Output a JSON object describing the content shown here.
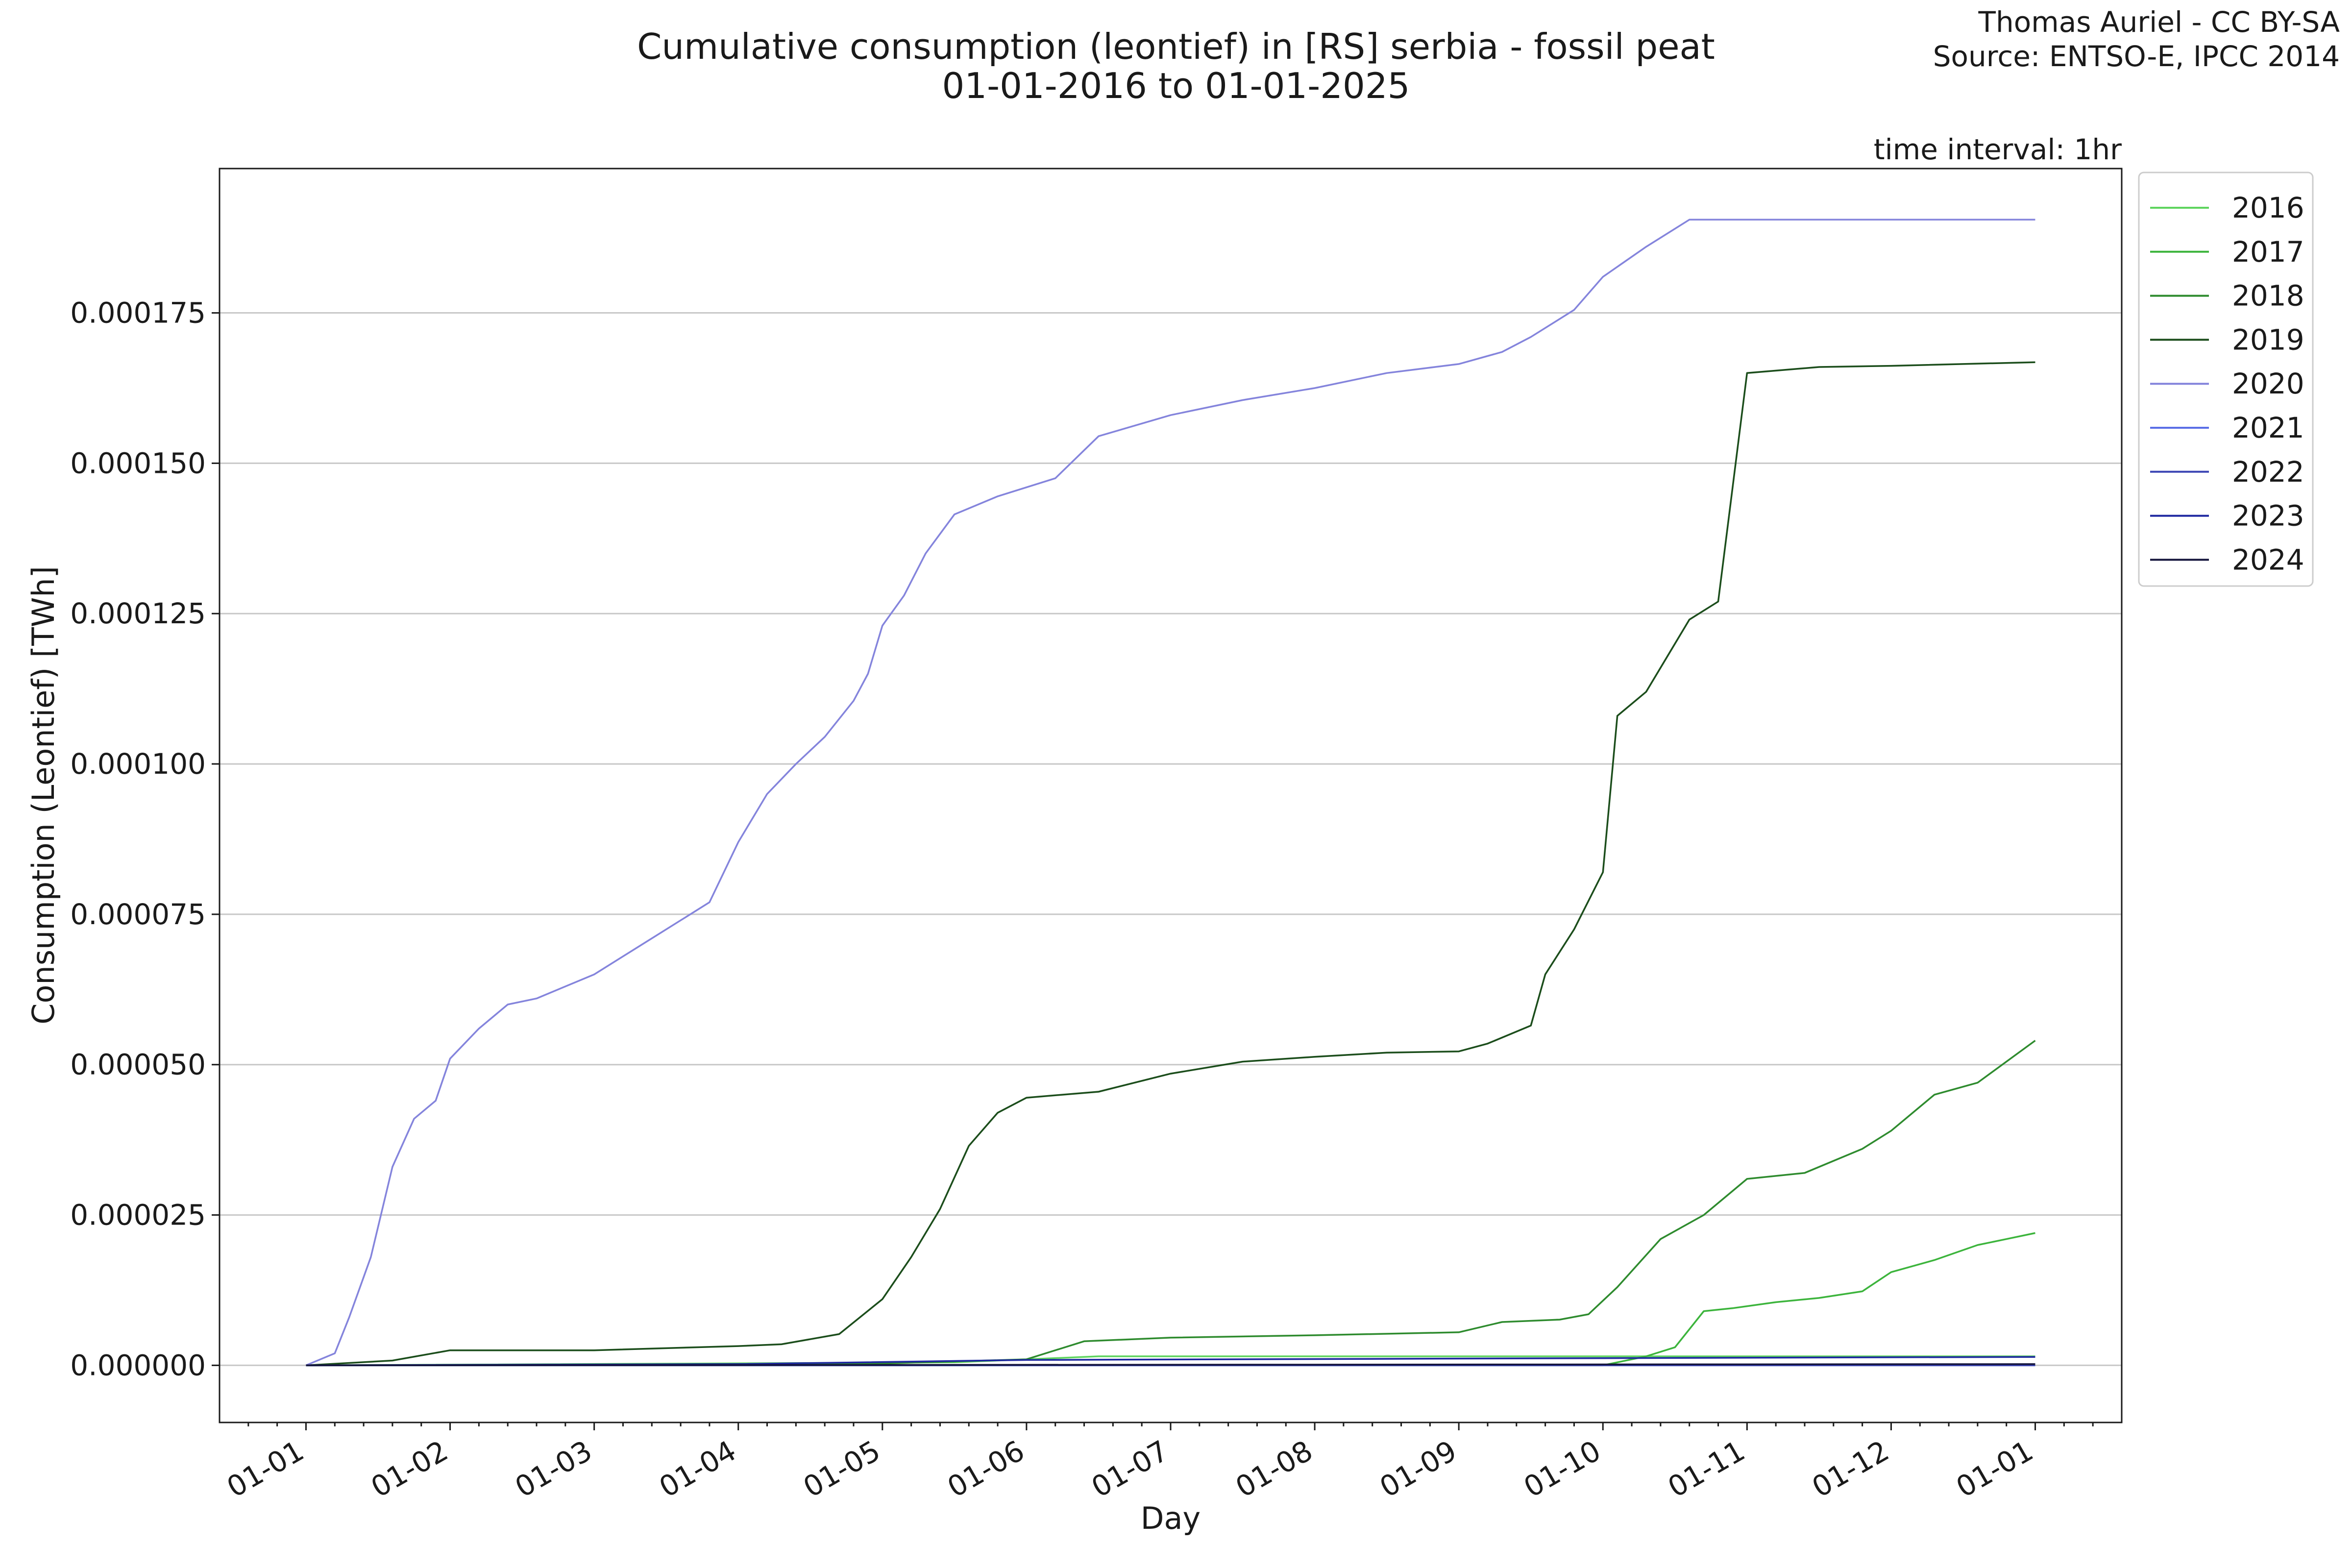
{
  "chart_data": {
    "type": "line",
    "title": "Cumulative consumption (leontief) in [RS] serbia - fossil peat",
    "subtitle": "01-01-2016 to 01-01-2025",
    "credit_line1": "Thomas Auriel - CC BY-SA",
    "credit_line2": "Source: ENTSO-E, IPCC 2014",
    "interval_note": "time interval: 1hr",
    "xlabel": "Day",
    "ylabel": "Consumption (Leontief) [TWh]",
    "x_tick_labels": [
      "01-01",
      "01-02",
      "01-03",
      "01-04",
      "01-05",
      "01-06",
      "01-07",
      "01-08",
      "01-09",
      "01-10",
      "01-11",
      "01-12",
      "01-01"
    ],
    "y_tick_labels": [
      "0.000000",
      "0.000025",
      "0.000050",
      "0.000075",
      "0.000100",
      "0.000125",
      "0.000150",
      "0.000175"
    ],
    "y_ticks": [
      0,
      2.5e-05,
      5e-05,
      7.5e-05,
      0.0001,
      0.000125,
      0.00015,
      0.000175
    ],
    "xlim": [
      -0.6,
      12.6
    ],
    "ylim": [
      -9.5e-06,
      0.000199
    ],
    "grid": "horizontal",
    "legend_position": "outside-top-right",
    "series": [
      {
        "name": "2016",
        "color": "#5ed45e",
        "x": [
          0,
          4.5,
          5.5,
          12
        ],
        "y": [
          0,
          5e-07,
          1.5e-06,
          1.5e-06
        ]
      },
      {
        "name": "2017",
        "color": "#3cb43c",
        "x": [
          0,
          9.0,
          9.3,
          9.5,
          9.7,
          9.9,
          10.2,
          10.5,
          10.8,
          11.0,
          11.3,
          11.6,
          11.8,
          12.0
        ],
        "y": [
          0,
          0,
          1.5e-06,
          3e-06,
          9e-06,
          9.5e-06,
          1.05e-05,
          1.12e-05,
          1.23e-05,
          1.55e-05,
          1.75e-05,
          2e-05,
          2.1e-05,
          2.2e-05
        ]
      },
      {
        "name": "2018",
        "color": "#2e8b2e",
        "x": [
          0,
          4.0,
          5.0,
          5.4,
          6.0,
          7.0,
          8.0,
          8.3,
          8.7,
          8.9,
          9.1,
          9.4,
          9.7,
          10.0,
          10.4,
          10.8,
          11.0,
          11.3,
          11.6,
          12.0
        ],
        "y": [
          0,
          3e-07,
          1e-06,
          4e-06,
          4.6e-06,
          5e-06,
          5.5e-06,
          7.2e-06,
          7.6e-06,
          8.5e-06,
          1.3e-05,
          2.1e-05,
          2.5e-05,
          3.1e-05,
          3.2e-05,
          3.6e-05,
          3.9e-05,
          4.5e-05,
          4.7e-05,
          5.4e-05
        ]
      },
      {
        "name": "2019",
        "color": "#1b4d1b",
        "x": [
          0,
          0.6,
          1.0,
          2.0,
          3.0,
          3.3,
          3.7,
          4.0,
          4.2,
          4.4,
          4.6,
          4.8,
          5.0,
          5.5,
          6.0,
          6.5,
          7.0,
          7.5,
          8.0,
          8.2,
          8.5,
          8.6,
          8.8,
          9.0,
          9.1,
          9.15,
          9.3,
          9.6,
          9.8,
          10.0,
          10.5,
          11.0,
          12.0
        ],
        "y": [
          0,
          8e-07,
          2.5e-06,
          2.5e-06,
          3.2e-06,
          3.5e-06,
          5.2e-06,
          1.1e-05,
          1.8e-05,
          2.6e-05,
          3.65e-05,
          4.2e-05,
          4.45e-05,
          4.55e-05,
          4.85e-05,
          5.05e-05,
          5.13e-05,
          5.2e-05,
          5.22e-05,
          5.35e-05,
          5.65e-05,
          6.5e-05,
          7.25e-05,
          8.2e-05,
          0.000108,
          0.000109,
          0.000112,
          0.000124,
          0.000127,
          0.000165,
          0.000166,
          0.0001662,
          0.0001668
        ]
      },
      {
        "name": "2020",
        "color": "#8484dc",
        "x": [
          0,
          0.2,
          0.3,
          0.45,
          0.6,
          0.75,
          0.9,
          1.0,
          1.2,
          1.4,
          1.6,
          2.0,
          2.3,
          2.6,
          2.8,
          3.0,
          3.2,
          3.4,
          3.6,
          3.8,
          3.9,
          4.0,
          4.15,
          4.3,
          4.5,
          4.8,
          5.2,
          5.5,
          6.0,
          6.5,
          7.0,
          7.5,
          8.0,
          8.3,
          8.5,
          8.8,
          9.0,
          9.3,
          9.6,
          12.0
        ],
        "y": [
          0,
          2e-06,
          8e-06,
          1.8e-05,
          3.3e-05,
          4.1e-05,
          4.4e-05,
          5.1e-05,
          5.6e-05,
          6e-05,
          6.1e-05,
          6.5e-05,
          6.95e-05,
          7.4e-05,
          7.7e-05,
          8.7e-05,
          9.5e-05,
          0.0001,
          0.0001045,
          0.0001105,
          0.000115,
          0.000123,
          0.000128,
          0.000135,
          0.0001415,
          0.0001445,
          0.0001475,
          0.0001545,
          0.000158,
          0.0001605,
          0.0001625,
          0.000165,
          0.0001665,
          0.0001685,
          0.000171,
          0.0001755,
          0.000181,
          0.000186,
          0.0001905,
          0.0001905
        ]
      },
      {
        "name": "2021",
        "color": "#5a6ee6",
        "x": [
          0,
          12.0
        ],
        "y": [
          0,
          0
        ]
      },
      {
        "name": "2022",
        "color": "#3c46b4",
        "x": [
          0,
          12.0
        ],
        "y": [
          0,
          0
        ]
      },
      {
        "name": "2023",
        "color": "#1e28a0",
        "x": [
          0,
          3.0,
          5.0,
          9.0,
          12.0
        ],
        "y": [
          0,
          2e-07,
          9e-07,
          1.2e-06,
          1.4e-06
        ]
      },
      {
        "name": "2024",
        "color": "#14143c",
        "x": [
          0,
          12.0
        ],
        "y": [
          0,
          2e-07
        ]
      }
    ]
  }
}
